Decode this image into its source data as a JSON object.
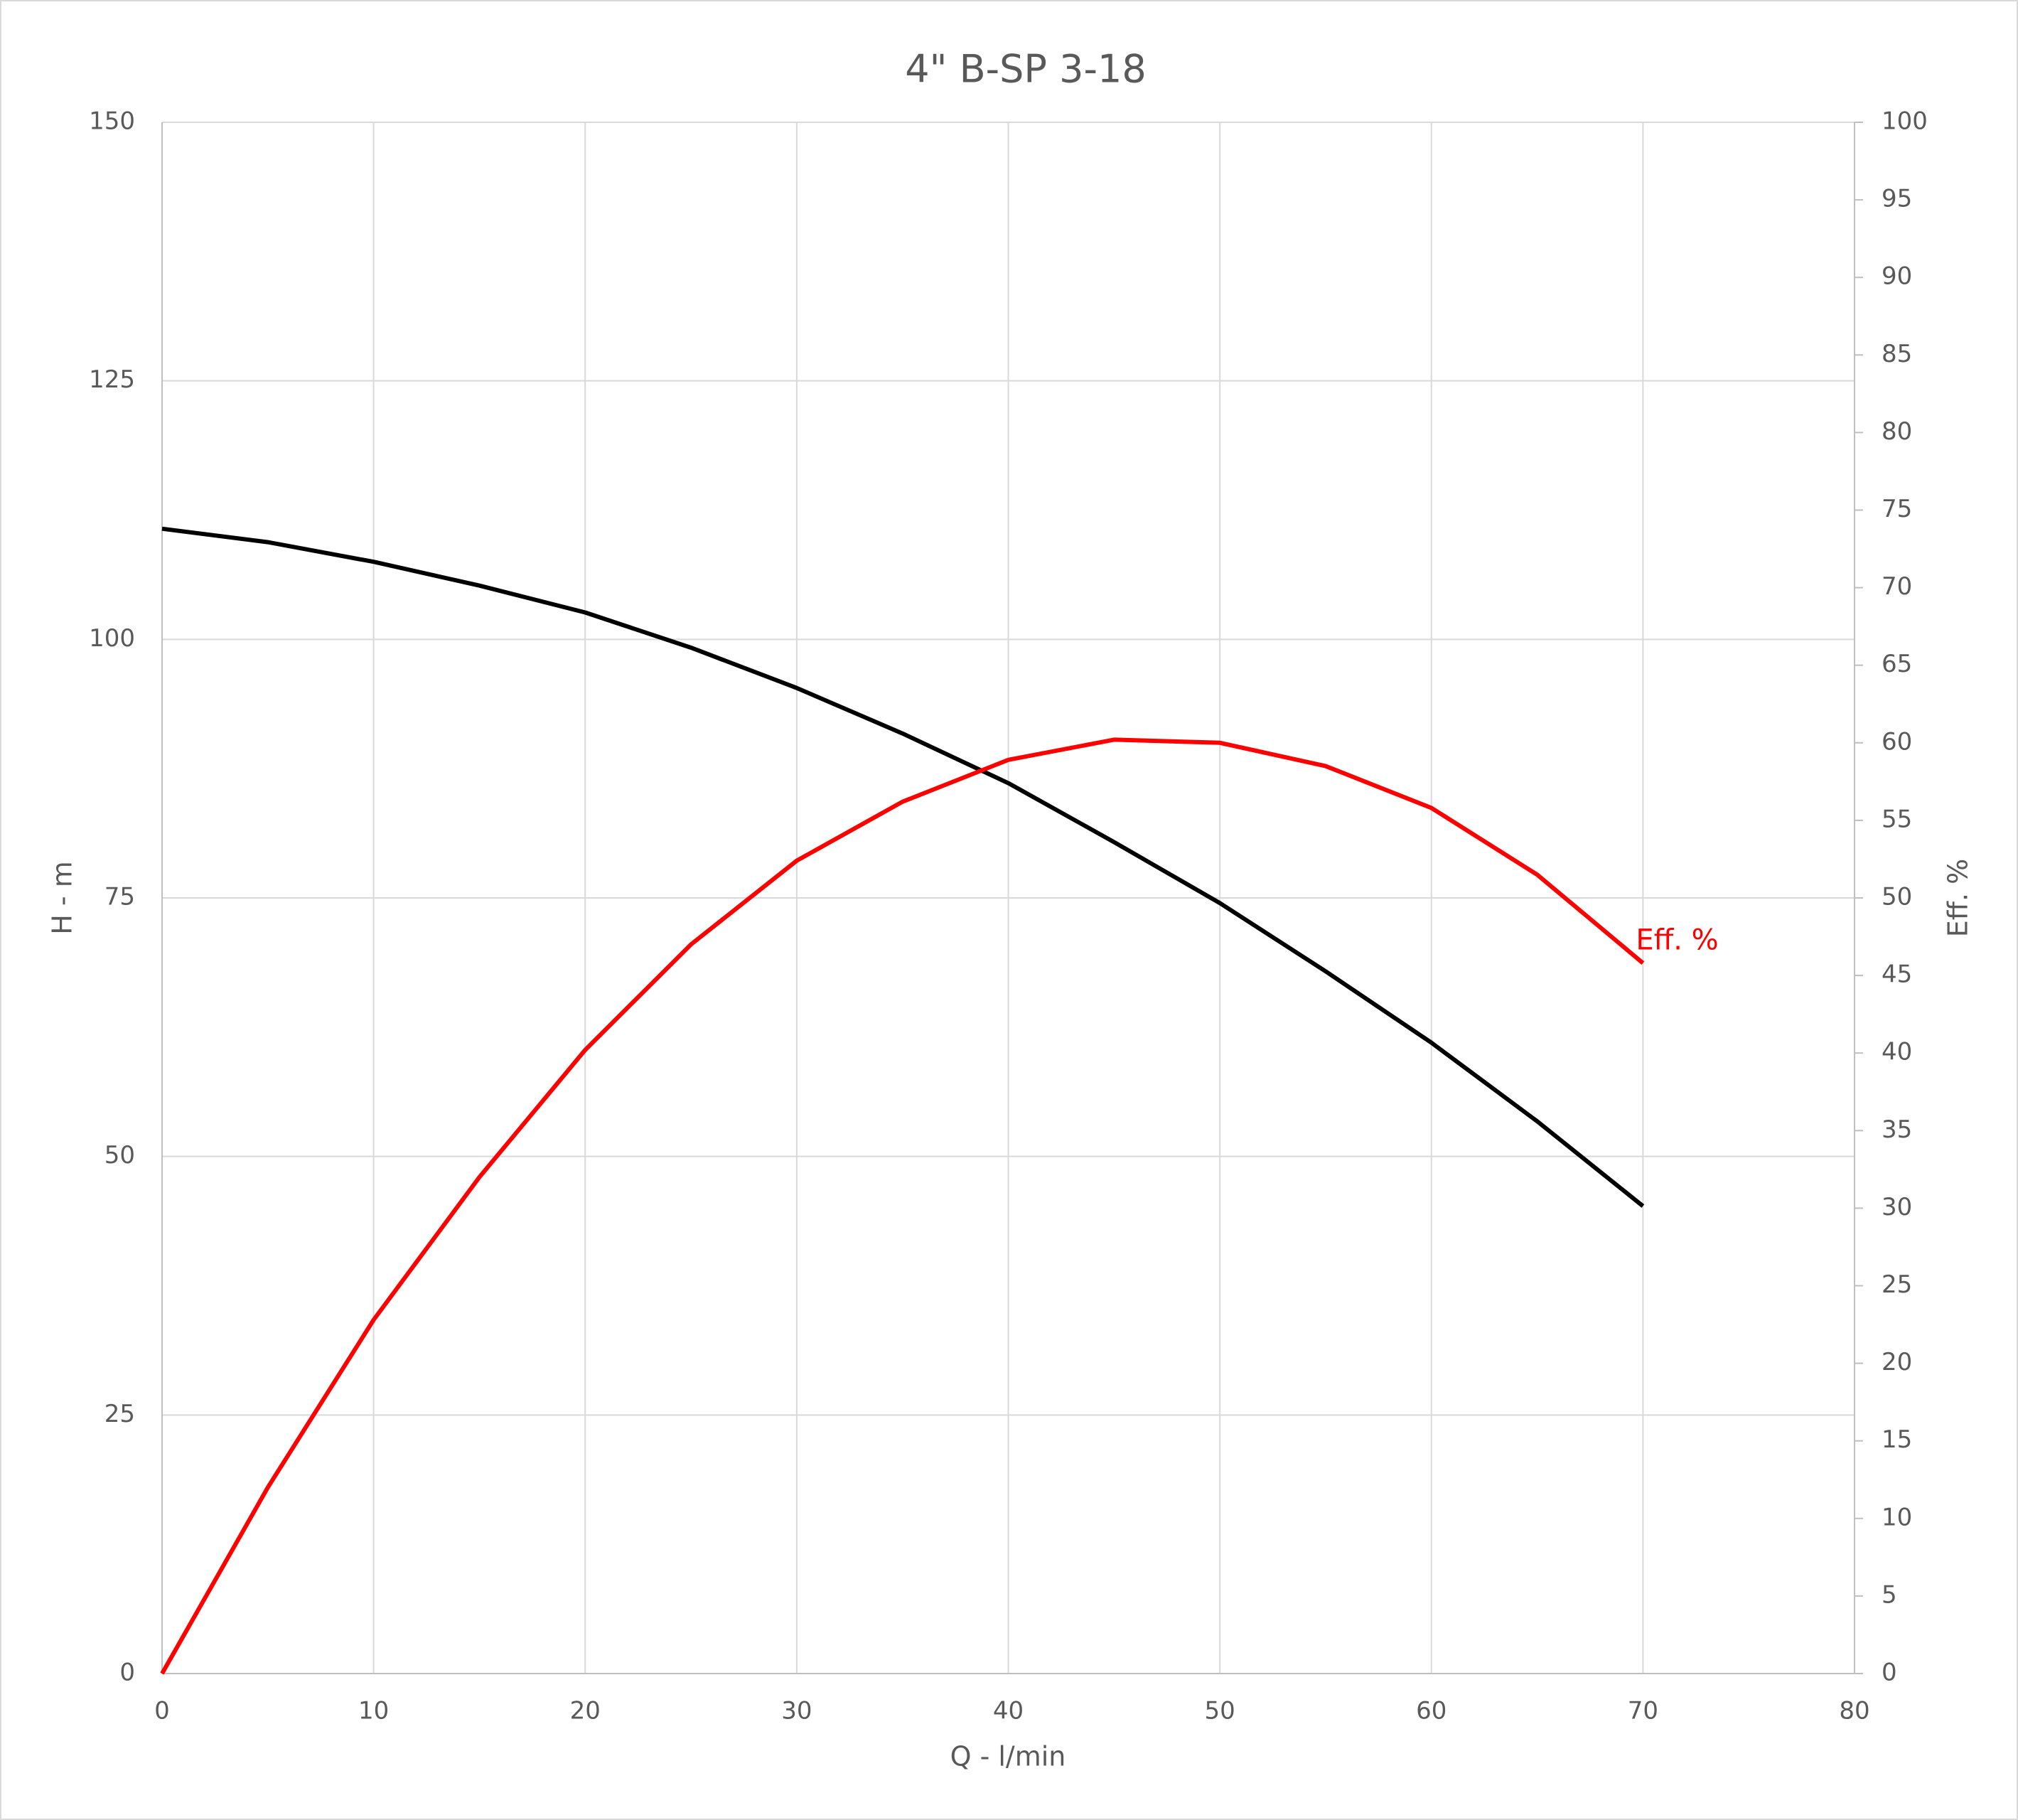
{
  "chart_data": {
    "type": "line",
    "title": "4\" B-SP 3-18",
    "x_label": "Q - l/min",
    "y_label": "H - m",
    "y2_label": "Eff. %",
    "x": [
      0,
      5,
      10,
      15,
      20,
      25,
      30,
      35,
      40,
      45,
      50,
      55,
      60,
      65,
      70
    ],
    "series": [
      {
        "color": "#000000",
        "values": [
          110.7,
          109.4,
          107.5,
          105.2,
          102.6,
          99.2,
          95.3,
          90.9,
          86.1,
          80.4,
          74.5,
          67.9,
          61.0,
          53.4,
          45.2
        ]
      },
      {
        "name": "Eff. %",
        "color": "#ff0000",
        "axis": "y2",
        "values": [
          0,
          12,
          22.8,
          32,
          40.2,
          47,
          52.4,
          56.2,
          58.9,
          60.2,
          60,
          58.5,
          55.8,
          51.5,
          45.8
        ]
      }
    ],
    "xlim": [
      0,
      80
    ],
    "xticks": [
      0,
      10,
      20,
      30,
      40,
      50,
      60,
      70,
      80
    ],
    "ylim": [
      0,
      150
    ],
    "yticks": [
      0,
      25,
      50,
      75,
      100,
      125,
      150
    ],
    "y2lim": [
      0,
      100
    ],
    "y2ticks": [
      0,
      5,
      10,
      15,
      20,
      25,
      30,
      35,
      40,
      45,
      50,
      55,
      60,
      65,
      70,
      75,
      80,
      85,
      90,
      95,
      100
    ],
    "grid": true
  }
}
